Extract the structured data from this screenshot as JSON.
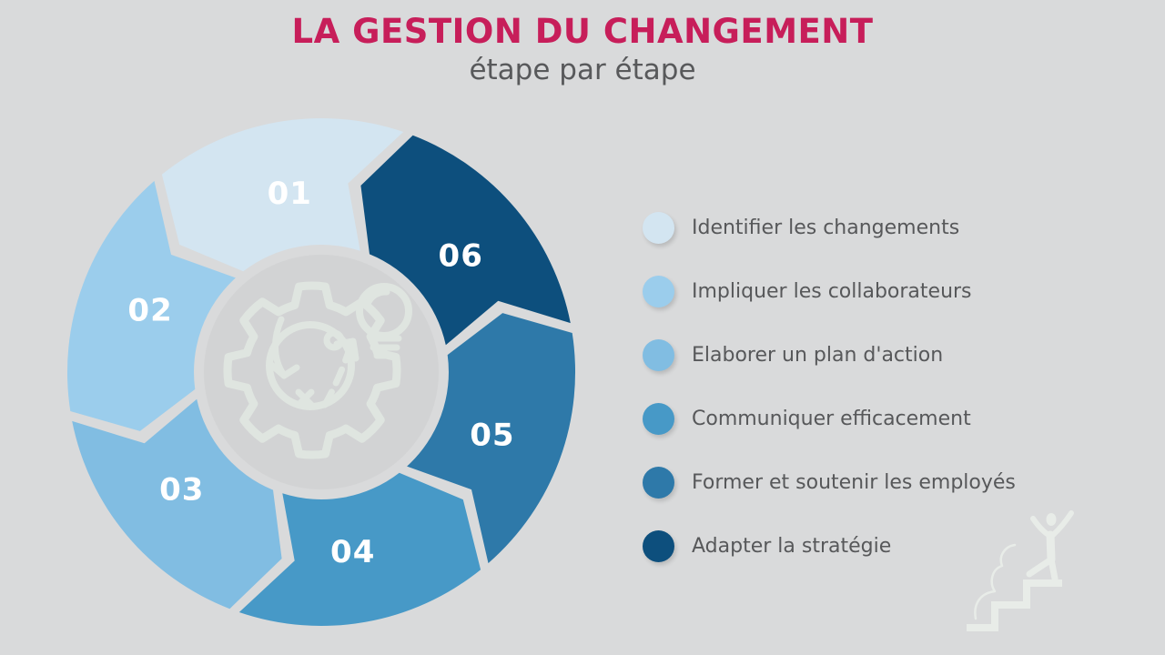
{
  "page": {
    "background_color": "#d9dadb"
  },
  "header": {
    "title": "LA GESTION DU CHANGEMENT",
    "title_color": "#c71e5a",
    "subtitle": "étape par étape",
    "subtitle_color": "#58595b"
  },
  "steps": [
    {
      "number": "01",
      "label": "Identifier les changements",
      "color": "#d3e5f1"
    },
    {
      "number": "02",
      "label": "Impliquer les collaborateurs",
      "color": "#9bcdec"
    },
    {
      "number": "03",
      "label": "Elaborer un plan d'action",
      "color": "#81bde2"
    },
    {
      "number": "04",
      "label": "Communiquer efficacement",
      "color": "#4799c7"
    },
    {
      "number": "05",
      "label": "Former et soutenir les employés",
      "color": "#2e79a9"
    },
    {
      "number": "06",
      "label": "Adapter la stratégie",
      "color": "#0d4f7d"
    }
  ],
  "cycle": {
    "direction": "counterclockwise",
    "number_text_color": "#ffffff",
    "hub_color": "#d2d3d4",
    "icon_stroke_color": "#dfe5e0",
    "center_icons": [
      "gear-icon",
      "strategy-doodle-icon",
      "lightbulb-icon"
    ]
  },
  "decor": {
    "corner_icon": "person-climbing-stairs-icon",
    "icon_color": "#e8ece8"
  }
}
